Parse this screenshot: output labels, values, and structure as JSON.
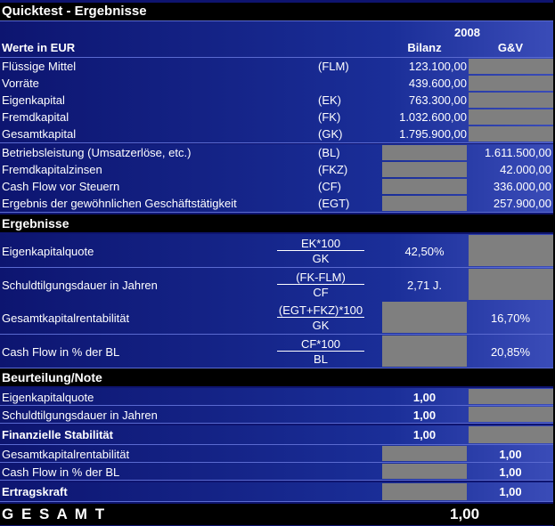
{
  "title": "Quicktest - Ergebnisse",
  "year": "2008",
  "unit_label": "Werte in EUR",
  "col_bilanz": "Bilanz",
  "col_guv": "G&V",
  "inputs": [
    {
      "label": "Flüssige Mittel",
      "abbr": "(FLM)",
      "bilanz": "123.100,00",
      "guv": ""
    },
    {
      "label": "Vorräte",
      "abbr": "",
      "bilanz": "439.600,00",
      "guv": ""
    },
    {
      "label": "Eigenkapital",
      "abbr": "(EK)",
      "bilanz": "763.300,00",
      "guv": ""
    },
    {
      "label": "Fremdkapital",
      "abbr": "(FK)",
      "bilanz": "1.032.600,00",
      "guv": ""
    },
    {
      "label": "Gesamtkapital",
      "abbr": "(GK)",
      "bilanz": "1.795.900,00",
      "guv": ""
    },
    {
      "label": "Betriebsleistung (Umsatzerlöse, etc.)",
      "abbr": "(BL)",
      "bilanz": "",
      "guv": "1.611.500,00"
    },
    {
      "label": "Fremdkapitalzinsen",
      "abbr": "(FKZ)",
      "bilanz": "",
      "guv": "42.000,00"
    },
    {
      "label": "Cash Flow vor Steuern",
      "abbr": "(CF)",
      "bilanz": "",
      "guv": "336.000,00"
    },
    {
      "label": "Ergebnis der gewöhnlichen Geschäftstätigkeit",
      "abbr": "(EGT)",
      "bilanz": "",
      "guv": "257.900,00"
    }
  ],
  "results_title": "Ergebnisse",
  "results": [
    {
      "label": "Eigenkapitalquote",
      "num": "EK*100",
      "den": "GK",
      "bilanz": "42,50%",
      "guv": ""
    },
    {
      "label": "Schuldtilgungsdauer in Jahren",
      "num": "(FK-FLM)",
      "den": "CF",
      "bilanz": "2,71 J.",
      "guv": ""
    },
    {
      "label": "Gesamtkapitalrentabilität",
      "num": "(EGT+FKZ)*100",
      "den": "GK",
      "bilanz": "",
      "guv": "16,70%"
    },
    {
      "label": "Cash Flow in % der BL",
      "num": "CF*100",
      "den": "BL",
      "bilanz": "",
      "guv": "20,85%"
    }
  ],
  "rating_title": "Beurteilung/Note",
  "ratings": [
    {
      "label": "Eigenkapitalquote",
      "bilanz": "1,00",
      "guv": ""
    },
    {
      "label": "Schuldtilgungsdauer in Jahren",
      "bilanz": "1,00",
      "guv": ""
    },
    {
      "label": "Finanzielle Stabilität",
      "bilanz": "1,00",
      "guv": ""
    },
    {
      "label": "Gesamtkapitalrentabilität",
      "bilanz": "",
      "guv": "1,00"
    },
    {
      "label": "Cash Flow in % der BL",
      "bilanz": "",
      "guv": "1,00"
    },
    {
      "label": "Ertragskraft",
      "bilanz": "",
      "guv": "1,00"
    }
  ],
  "total_label": "G E S A M T",
  "total_value": "1,00",
  "colors": {
    "background": "#0e1470",
    "header": "#000000",
    "cell_gray": "#7f7f7f"
  }
}
